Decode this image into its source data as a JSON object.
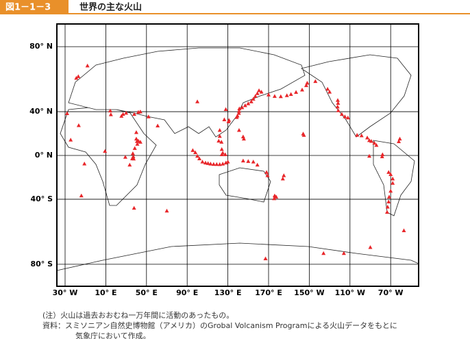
{
  "header": {
    "figure_label": "図1－1－3",
    "title": "世界の主な火山"
  },
  "map": {
    "type": "scatter",
    "lat_ticks": [
      {
        "value": 80,
        "label": "80° N"
      },
      {
        "value": 40,
        "label": "40° N"
      },
      {
        "value": 0,
        "label": "0° N"
      },
      {
        "value": -40,
        "label": "40° S"
      },
      {
        "value": -80,
        "label": "80° S"
      }
    ],
    "lon_ticks": [
      {
        "value": -30,
        "label": "30° W"
      },
      {
        "value": 10,
        "label": "10° E"
      },
      {
        "value": 50,
        "label": "50° E"
      },
      {
        "value": 90,
        "label": "90° E"
      },
      {
        "value": 130,
        "label": "130° E"
      },
      {
        "value": 170,
        "label": "170° E"
      },
      {
        "value": -150,
        "label": "150° W"
      },
      {
        "value": -110,
        "label": "110° W"
      },
      {
        "value": -70,
        "label": "70° W"
      }
    ],
    "color": "#e8262a",
    "volcanoes": [
      [
        130.6,
        31.6
      ],
      [
        131.1,
        32.9
      ],
      [
        138.7,
        35.4
      ],
      [
        139.4,
        36.6
      ],
      [
        140.8,
        38.8
      ],
      [
        141,
        40.5
      ],
      [
        141.3,
        42.5
      ],
      [
        144,
        43.4
      ],
      [
        147,
        45
      ],
      [
        150,
        46.5
      ],
      [
        153,
        48
      ],
      [
        155,
        50
      ],
      [
        157,
        52
      ],
      [
        159,
        54
      ],
      [
        160.6,
        56
      ],
      [
        163,
        55
      ],
      [
        170,
        53
      ],
      [
        176,
        52
      ],
      [
        -178,
        51.8
      ],
      [
        -172,
        52.5
      ],
      [
        -168,
        53.4
      ],
      [
        -163,
        54.8
      ],
      [
        -157,
        56.5
      ],
      [
        -153,
        59.4
      ],
      [
        -152,
        61
      ],
      [
        -144,
        62
      ],
      [
        -132,
        57
      ],
      [
        -130,
        55
      ],
      [
        -122,
        49
      ],
      [
        -121.7,
        46.8
      ],
      [
        -122.2,
        44
      ],
      [
        -121.5,
        41
      ],
      [
        -118,
        38
      ],
      [
        -115,
        36
      ],
      [
        -112,
        35
      ],
      [
        -103,
        19.5
      ],
      [
        -98.6,
        19
      ],
      [
        -93,
        17
      ],
      [
        -91,
        14.5
      ],
      [
        -89,
        13.8
      ],
      [
        -86,
        12
      ],
      [
        -84,
        10
      ],
      [
        -61,
        16
      ],
      [
        -62,
        13.5
      ],
      [
        -78,
        1
      ],
      [
        -78.4,
        -1
      ],
      [
        -72,
        -16
      ],
      [
        -70,
        -18
      ],
      [
        -68,
        -22
      ],
      [
        -68,
        -26
      ],
      [
        -70,
        -33
      ],
      [
        -71.5,
        -38
      ],
      [
        -72,
        -42
      ],
      [
        -73,
        -46
      ],
      [
        -73.5,
        -50
      ],
      [
        -91,
        -0.5
      ],
      [
        -155.3,
        19.4
      ],
      [
        -156,
        20.7
      ],
      [
        95.5,
        5
      ],
      [
        98,
        3
      ],
      [
        100,
        -0.5
      ],
      [
        102,
        -3
      ],
      [
        105,
        -6
      ],
      [
        108,
        -7
      ],
      [
        110.5,
        -7.5
      ],
      [
        113,
        -8
      ],
      [
        116,
        -8.3
      ],
      [
        119,
        -8.4
      ],
      [
        122,
        -8.5
      ],
      [
        125,
        -8
      ],
      [
        128,
        -7
      ],
      [
        130,
        -6
      ],
      [
        127.5,
        1
      ],
      [
        125,
        2.5
      ],
      [
        124,
        1
      ],
      [
        124,
        6
      ],
      [
        123.7,
        13
      ],
      [
        121,
        14
      ],
      [
        122,
        18.5
      ],
      [
        122,
        24
      ],
      [
        145,
        -5
      ],
      [
        150,
        -5.5
      ],
      [
        155,
        -6
      ],
      [
        159,
        -9
      ],
      [
        168,
        -16
      ],
      [
        169,
        -19
      ],
      [
        -175,
        -19
      ],
      [
        -176,
        -22
      ],
      [
        177.5,
        -38
      ],
      [
        175.5,
        -39.3
      ],
      [
        176,
        -37
      ],
      [
        145.7,
        16
      ],
      [
        145,
        18
      ],
      [
        141,
        24
      ],
      [
        14.4,
        40.8
      ],
      [
        15,
        37.7
      ],
      [
        25.4,
        36.4
      ],
      [
        27,
        38
      ],
      [
        30,
        39
      ],
      [
        42,
        39.7
      ],
      [
        44,
        40
      ],
      [
        38,
        38
      ],
      [
        52,
        35.9
      ],
      [
        61,
        28
      ],
      [
        40,
        22
      ],
      [
        42,
        14
      ],
      [
        44,
        13
      ],
      [
        40.7,
        13.6
      ],
      [
        41,
        11
      ],
      [
        38.5,
        7
      ],
      [
        36.6,
        2
      ],
      [
        37,
        -1
      ],
      [
        36,
        -3
      ],
      [
        37.4,
        -3.1
      ],
      [
        29.2,
        -1.5
      ],
      [
        33.5,
        -9
      ],
      [
        9.2,
        4.2
      ],
      [
        -16.6,
        28.3
      ],
      [
        -28,
        38.6
      ],
      [
        -24.5,
        15
      ],
      [
        -19,
        64
      ],
      [
        -17,
        65
      ],
      [
        -8,
        71
      ],
      [
        -57,
        -62.5
      ],
      [
        167,
        -77.5
      ],
      [
        -136,
        -75
      ],
      [
        -116,
        -75
      ],
      [
        -90,
        -72
      ],
      [
        70,
        -49
      ],
      [
        37.8,
        -46.9
      ],
      [
        -14,
        -37
      ],
      [
        -11,
        -7.9
      ],
      [
        40,
        16
      ],
      [
        126.5,
        33.4
      ],
      [
        128,
        42
      ],
      [
        100,
        48
      ]
    ]
  },
  "notes": [
    "(注）火山は過去おおむね一万年間に活動のあったもの。",
    "資料：スミソニアン自然史博物館（アメリカ）のGrobal Volcanism Programによる火山データをもとに",
    "気象庁において作成。"
  ]
}
